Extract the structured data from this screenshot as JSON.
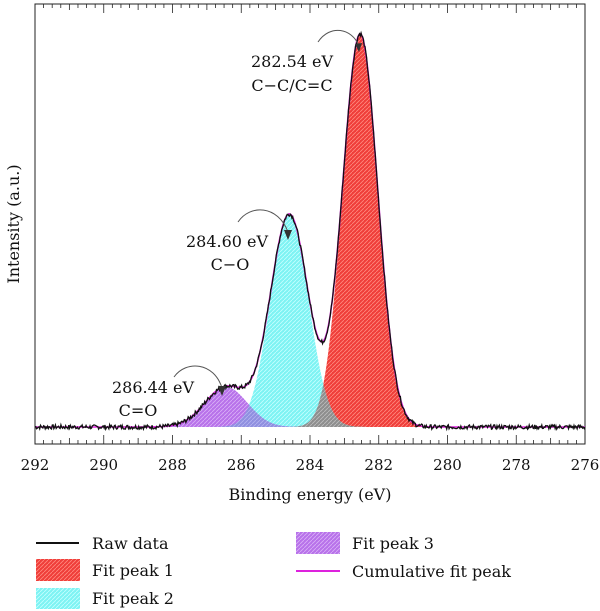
{
  "chart_data": {
    "type": "area",
    "xlabel": "Binding energy (eV)",
    "ylabel": "Intensity (a.u.)",
    "xlim": [
      292,
      276
    ],
    "x_reversed": true,
    "xticks": [
      292,
      290,
      288,
      286,
      284,
      282,
      280,
      278,
      276
    ],
    "ylim": [
      0,
      100
    ],
    "grid": false,
    "baseline": 2,
    "series": [
      {
        "name": "Raw data",
        "kind": "line",
        "color": "#111111"
      },
      {
        "name": "Fit peak 1",
        "kind": "gaussian",
        "center": 282.54,
        "height": 98,
        "fwhm": 1.2,
        "color": "#ee3b3b"
      },
      {
        "name": "Fit peak 2",
        "kind": "gaussian",
        "center": 284.6,
        "height": 53,
        "fwhm": 1.3,
        "color": "#66f0f0"
      },
      {
        "name": "Fit peak 3",
        "kind": "gaussian",
        "center": 286.44,
        "height": 10,
        "fwhm": 1.45,
        "color": "#b866e8"
      },
      {
        "name": "Cumulative fit peak",
        "kind": "line",
        "color": "#dd22dd"
      }
    ],
    "annotations": [
      {
        "energy": "282.54 eV",
        "bond": "C−C/C=C",
        "x": 282.54
      },
      {
        "energy": "284.60 eV",
        "bond": "C−O",
        "x": 284.6
      },
      {
        "energy": "286.44 eV",
        "bond": "C=O",
        "x": 286.44
      }
    ],
    "legend_position": "bottom",
    "legend": {
      "raw": "Raw data",
      "peak1": "Fit peak 1",
      "peak2": "Fit peak 2",
      "peak3": "Fit peak 3",
      "cumulative": "Cumulative fit peak"
    }
  }
}
